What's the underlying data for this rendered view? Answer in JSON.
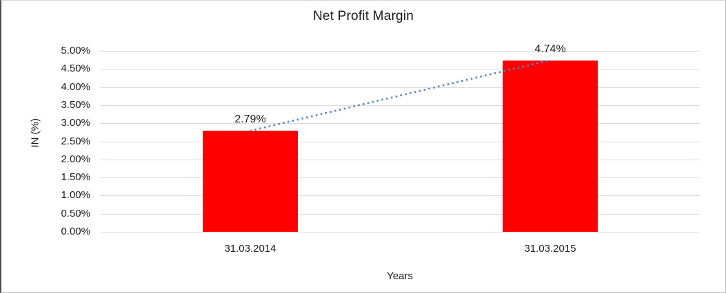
{
  "chart_data": {
    "type": "bar",
    "title": "Net Profit Margin",
    "xlabel": "Years",
    "ylabel": "IN (%)",
    "categories": [
      "31.03.2014",
      "31.03.2015"
    ],
    "series": [
      {
        "name": "Net Profit Margin",
        "values": [
          2.79,
          4.74
        ]
      }
    ],
    "data_labels": [
      "2.79%",
      "4.74%"
    ],
    "y_ticks": [
      "0.00%",
      "0.50%",
      "1.00%",
      "1.50%",
      "2.00%",
      "2.50%",
      "3.00%",
      "3.50%",
      "4.00%",
      "4.50%",
      "5.00%"
    ],
    "ylim": [
      0,
      5
    ],
    "grid": true,
    "legend": "none",
    "bar_color": "#ff0000",
    "gridline_color": "#d9d9d9",
    "text_color": "#1a1a1a",
    "trendline": {
      "type": "linear",
      "style": "dotted",
      "color": "#4f86c6"
    }
  }
}
